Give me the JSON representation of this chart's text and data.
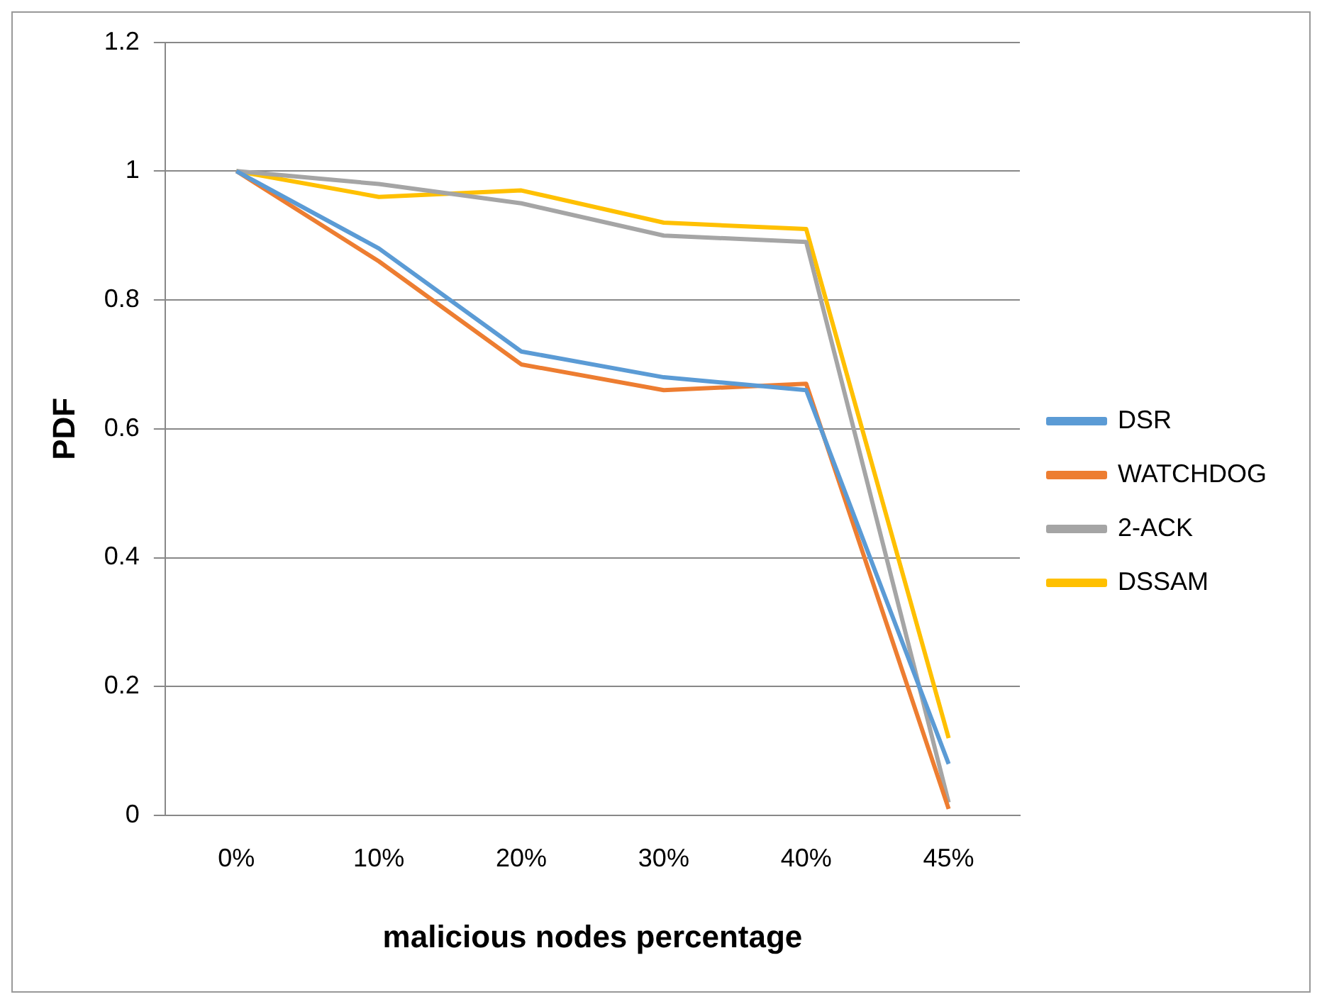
{
  "chart_data": {
    "type": "line",
    "xlabel": "malicious nodes percentage",
    "ylabel": "PDF",
    "categories": [
      "0%",
      "10%",
      "20%",
      "30%",
      "40%",
      "45%"
    ],
    "series": [
      {
        "name": "DSR",
        "color": "#5b9bd5",
        "values": [
          1,
          0.88,
          0.72,
          0.68,
          0.66,
          0.08
        ]
      },
      {
        "name": "WATCHDOG",
        "color": "#ed7d31",
        "values": [
          1,
          0.86,
          0.7,
          0.66,
          0.67,
          0.01
        ]
      },
      {
        "name": "2-ACK",
        "color": "#a5a5a5",
        "values": [
          1,
          0.98,
          0.95,
          0.9,
          0.89,
          0.02
        ]
      },
      {
        "name": "DSSAM",
        "color": "#ffc000",
        "values": [
          1,
          0.96,
          0.97,
          0.92,
          0.91,
          0.12
        ]
      }
    ],
    "ylim": [
      0,
      1.2
    ],
    "yticks": [
      0,
      0.2,
      0.4,
      0.6,
      0.8,
      1,
      1.2
    ],
    "grid": "y",
    "legend": "right",
    "marker": "none",
    "line_style": "solid"
  }
}
